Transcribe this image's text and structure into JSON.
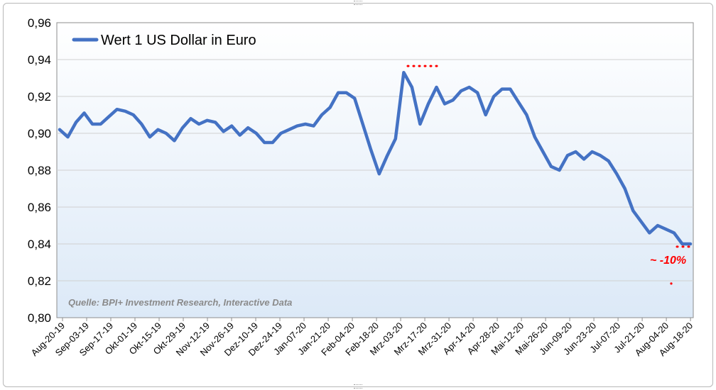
{
  "chart_data": {
    "type": "line",
    "legend": "Wert 1 US Dollar in Euro",
    "legend_position": "top-left",
    "source_note": "Quelle: BPI+ Investment Research, Interactive Data",
    "annotation": "~ -10%",
    "ylim": [
      0.8,
      0.96
    ],
    "yticks": [
      "0,80",
      "0,82",
      "0,84",
      "0,86",
      "0,88",
      "0,90",
      "0,92",
      "0,94",
      "0,96"
    ],
    "ytick_values": [
      0.8,
      0.82,
      0.84,
      0.86,
      0.88,
      0.9,
      0.92,
      0.94,
      0.96
    ],
    "grid": true,
    "xticks": [
      "Aug-20-19",
      "Sep-03-19",
      "Sep-17-19",
      "Okt-01-19",
      "Okt-15-19",
      "Okt-29-19",
      "Nov-12-19",
      "Nov-26-19",
      "Dez-10-19",
      "Dez-24-19",
      "Jan-07-20",
      "Jan-21-20",
      "Feb-04-20",
      "Feb-18-20",
      "Mrz-03-20",
      "Mrz-17-20",
      "Mrz-31-20",
      "Apr-14-20",
      "Apr-28-20",
      "Mai-12-20",
      "Mai-26-20",
      "Jun-09-20",
      "Jun-23-20",
      "Jul-07-20",
      "Jul-21-20",
      "Aug-04-20",
      "Aug-18-20"
    ],
    "series": [
      {
        "name": "Wert 1 US Dollar in Euro",
        "color": "#4472C4",
        "values": [
          0.902,
          0.898,
          0.906,
          0.911,
          0.905,
          0.905,
          0.909,
          0.913,
          0.912,
          0.91,
          0.905,
          0.898,
          0.902,
          0.9,
          0.896,
          0.903,
          0.908,
          0.905,
          0.907,
          0.906,
          0.901,
          0.904,
          0.899,
          0.903,
          0.9,
          0.895,
          0.895,
          0.9,
          0.902,
          0.904,
          0.905,
          0.904,
          0.91,
          0.914,
          0.922,
          0.922,
          0.919,
          0.905,
          0.891,
          0.878,
          0.888,
          0.897,
          0.933,
          0.925,
          0.905,
          0.916,
          0.925,
          0.916,
          0.918,
          0.923,
          0.925,
          0.922,
          0.91,
          0.92,
          0.924,
          0.924,
          0.917,
          0.91,
          0.898,
          0.89,
          0.882,
          0.88,
          0.888,
          0.89,
          0.886,
          0.89,
          0.888,
          0.885,
          0.878,
          0.87,
          0.858,
          0.852,
          0.846,
          0.85,
          0.848,
          0.846,
          0.84,
          0.84
        ]
      }
    ],
    "reference_line": {
      "value": 0.9365,
      "color": "#ff0000"
    },
    "current_line": {
      "value": 0.8385,
      "color": "#ff0000"
    }
  }
}
